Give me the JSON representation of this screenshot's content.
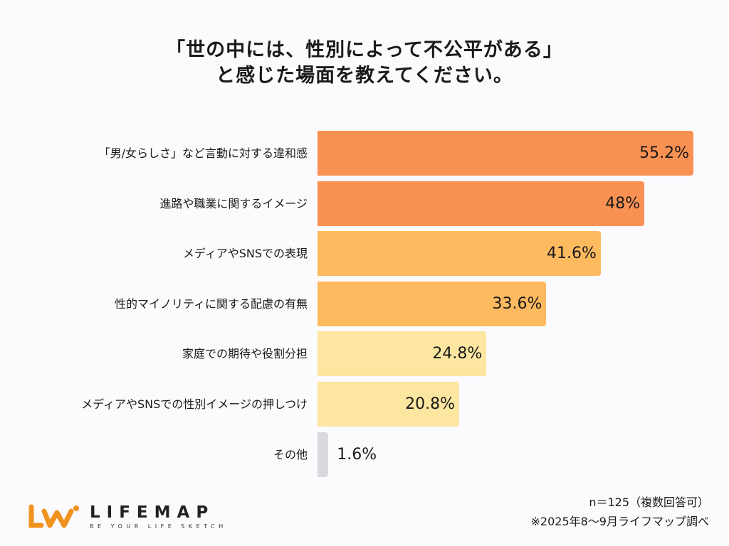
{
  "chart_data": {
    "type": "bar",
    "orientation": "horizontal",
    "title": "「世の中には、性別によって不公平がある」",
    "subtitle": "と感じた場面を教えてください。",
    "categories": [
      "「男/女らしさ」など言動に対する違和感",
      "進路や職業に関するイメージ",
      "メディアやSNSでの表現",
      "性的マイノリティに関する配慮の有無",
      "家庭での期待や役割分担",
      "メディアやSNSでの性別イメージの押しつけ",
      "その他"
    ],
    "values": [
      55.2,
      48,
      41.6,
      33.6,
      24.8,
      20.8,
      1.6
    ],
    "value_labels": [
      "55.2%",
      "48%",
      "41.6%",
      "33.6%",
      "24.8%",
      "20.8%",
      "1.6%"
    ],
    "colors": [
      "#f99152",
      "#f99152",
      "#fdba5e",
      "#fdba5e",
      "#fce6a0",
      "#fce6a0",
      "#d9d9de"
    ],
    "xlim": [
      0,
      55.2
    ],
    "grid": false
  },
  "footer": {
    "sample_note": "n＝125（複数回答可）",
    "source_note": "※2025年8〜9月ライフマップ調べ"
  },
  "logo": {
    "name": "LIFEMAP",
    "tagline": "BE YOUR LIFE SKETCH",
    "color": "#f0921e"
  }
}
